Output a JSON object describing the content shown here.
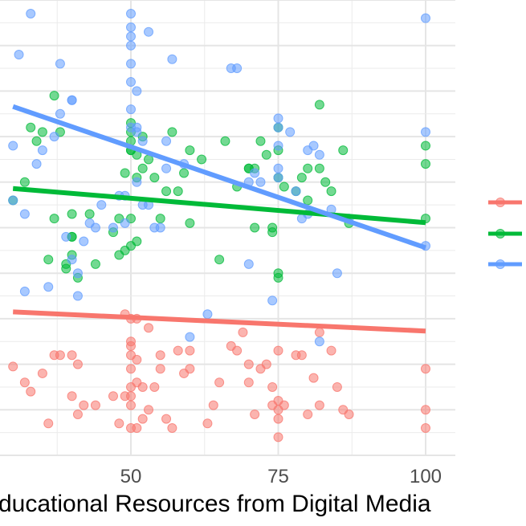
{
  "chart_data": {
    "type": "scatter",
    "xlabel": "ducational Resources from Digital Media",
    "x_ticks": [
      50,
      75,
      100
    ],
    "x_ticks_text": [
      "50",
      "75",
      "100"
    ],
    "xlim": [
      30,
      102
    ],
    "ylim": [
      0,
      100
    ],
    "grid": true,
    "legend_position": "right (cropped)",
    "series": [
      {
        "color": "#F8766D",
        "x": [
          30,
          32,
          33,
          35,
          36,
          37,
          38,
          40,
          40,
          41,
          41,
          42,
          44,
          47,
          48,
          49,
          49,
          50,
          50,
          50,
          50,
          50,
          50,
          50,
          50,
          50,
          51,
          51,
          51,
          51,
          52,
          52,
          53,
          53,
          54,
          55,
          55,
          56,
          57,
          58,
          59,
          60,
          60,
          63,
          64,
          65,
          67,
          68,
          69,
          70,
          70,
          71,
          72,
          73,
          74,
          74,
          75,
          75,
          75,
          75,
          75,
          76,
          78,
          79,
          80,
          81,
          82,
          82,
          84,
          85,
          86,
          87,
          100,
          100,
          100
        ],
        "y": [
          19.5,
          16,
          14,
          18,
          7,
          22,
          22,
          13,
          22,
          20,
          9,
          11,
          11,
          13,
          7,
          13,
          31,
          11,
          6,
          15,
          19,
          22,
          25,
          30,
          24,
          13,
          6,
          16,
          21,
          30,
          15,
          8,
          10,
          28,
          15,
          22,
          19,
          8,
          6,
          23,
          18,
          23,
          19,
          7,
          11,
          16,
          24,
          23,
          27,
          20,
          16,
          9,
          19,
          20,
          15,
          11,
          23,
          4,
          10,
          12,
          8,
          11,
          22,
          22,
          9,
          17,
          11,
          27,
          23,
          15,
          10,
          9,
          10,
          19,
          6
        ]
      },
      {
        "color": "#00BA38",
        "x": [
          30,
          32,
          33,
          34,
          35,
          36,
          37,
          37,
          38,
          39,
          39,
          40,
          40,
          40,
          40,
          41,
          43,
          44,
          47,
          48,
          48,
          49,
          49,
          50,
          50,
          50,
          50,
          50,
          50,
          50,
          51,
          51,
          51,
          52,
          52,
          53,
          54,
          55,
          56,
          57,
          58,
          59,
          60,
          60,
          62,
          65,
          66,
          68,
          70,
          70,
          71,
          71,
          72,
          73,
          74,
          74,
          75,
          75,
          75,
          75,
          75,
          76,
          78,
          79,
          80,
          80,
          82,
          82,
          83,
          84,
          86,
          87,
          100,
          100,
          100
        ],
        "y": [
          56,
          60,
          72,
          69,
          71,
          43,
          52,
          79,
          71,
          41,
          42,
          48,
          48,
          53,
          44,
          39,
          53,
          42,
          49,
          52,
          44,
          62,
          45,
          69,
          67,
          67,
          73,
          71,
          52,
          46,
          47,
          61,
          66,
          63,
          70,
          65,
          61,
          52,
          58,
          71,
          58,
          62,
          67,
          51,
          65,
          43,
          69,
          59,
          63,
          63,
          63,
          50,
          69,
          66,
          50,
          49,
          39,
          40,
          61,
          67,
          72,
          59,
          58,
          61,
          63,
          56,
          77,
          63,
          60,
          58,
          67,
          51,
          64,
          68,
          52
        ]
      },
      {
        "color": "#619CFF",
        "x": [
          30,
          30,
          31,
          32,
          32,
          33,
          34,
          35,
          36,
          37,
          38,
          38,
          39,
          40,
          40,
          40,
          41,
          41,
          42,
          43,
          44,
          45,
          47,
          48,
          49,
          49,
          50,
          50,
          50,
          50,
          50,
          50,
          50,
          50,
          51,
          51,
          51,
          51,
          52,
          52,
          53,
          53,
          54,
          55,
          56,
          56,
          57,
          59,
          60,
          63,
          67,
          68,
          70,
          70,
          71,
          72,
          74,
          75,
          75,
          75,
          75,
          75,
          77,
          78,
          79,
          80,
          80,
          81,
          82,
          82,
          84,
          85,
          87,
          100,
          100,
          100
        ],
        "y": [
          68,
          56,
          88,
          36,
          53,
          97,
          64,
          67,
          37,
          70,
          75,
          86,
          48,
          78,
          78,
          43,
          40,
          35,
          47,
          51,
          50,
          55,
          50,
          57,
          57,
          51,
          86,
          97,
          92,
          76,
          82,
          94,
          90,
          72,
          72,
          60,
          71,
          80,
          55,
          69,
          93,
          55,
          50,
          50,
          63,
          69,
          87,
          64,
          26,
          31,
          85,
          85,
          60,
          42,
          62,
          60,
          34,
          61,
          63,
          68,
          74,
          72,
          71,
          58,
          52,
          53,
          67,
          68,
          25,
          66,
          54,
          40,
          52,
          96,
          71,
          46
        ]
      }
    ],
    "trend_lines": [
      {
        "color": "#F8766D",
        "x": [
          30,
          100
        ],
        "y": [
          31.5,
          27.3
        ]
      },
      {
        "color": "#00BA38",
        "x": [
          30,
          100
        ],
        "y": [
          58.6,
          51.1
        ]
      },
      {
        "color": "#619CFF",
        "x": [
          30,
          100
        ],
        "y": [
          76.6,
          45.6
        ]
      }
    ],
    "legend_colors": [
      "#F8766D",
      "#00BA38",
      "#619CFF"
    ]
  }
}
